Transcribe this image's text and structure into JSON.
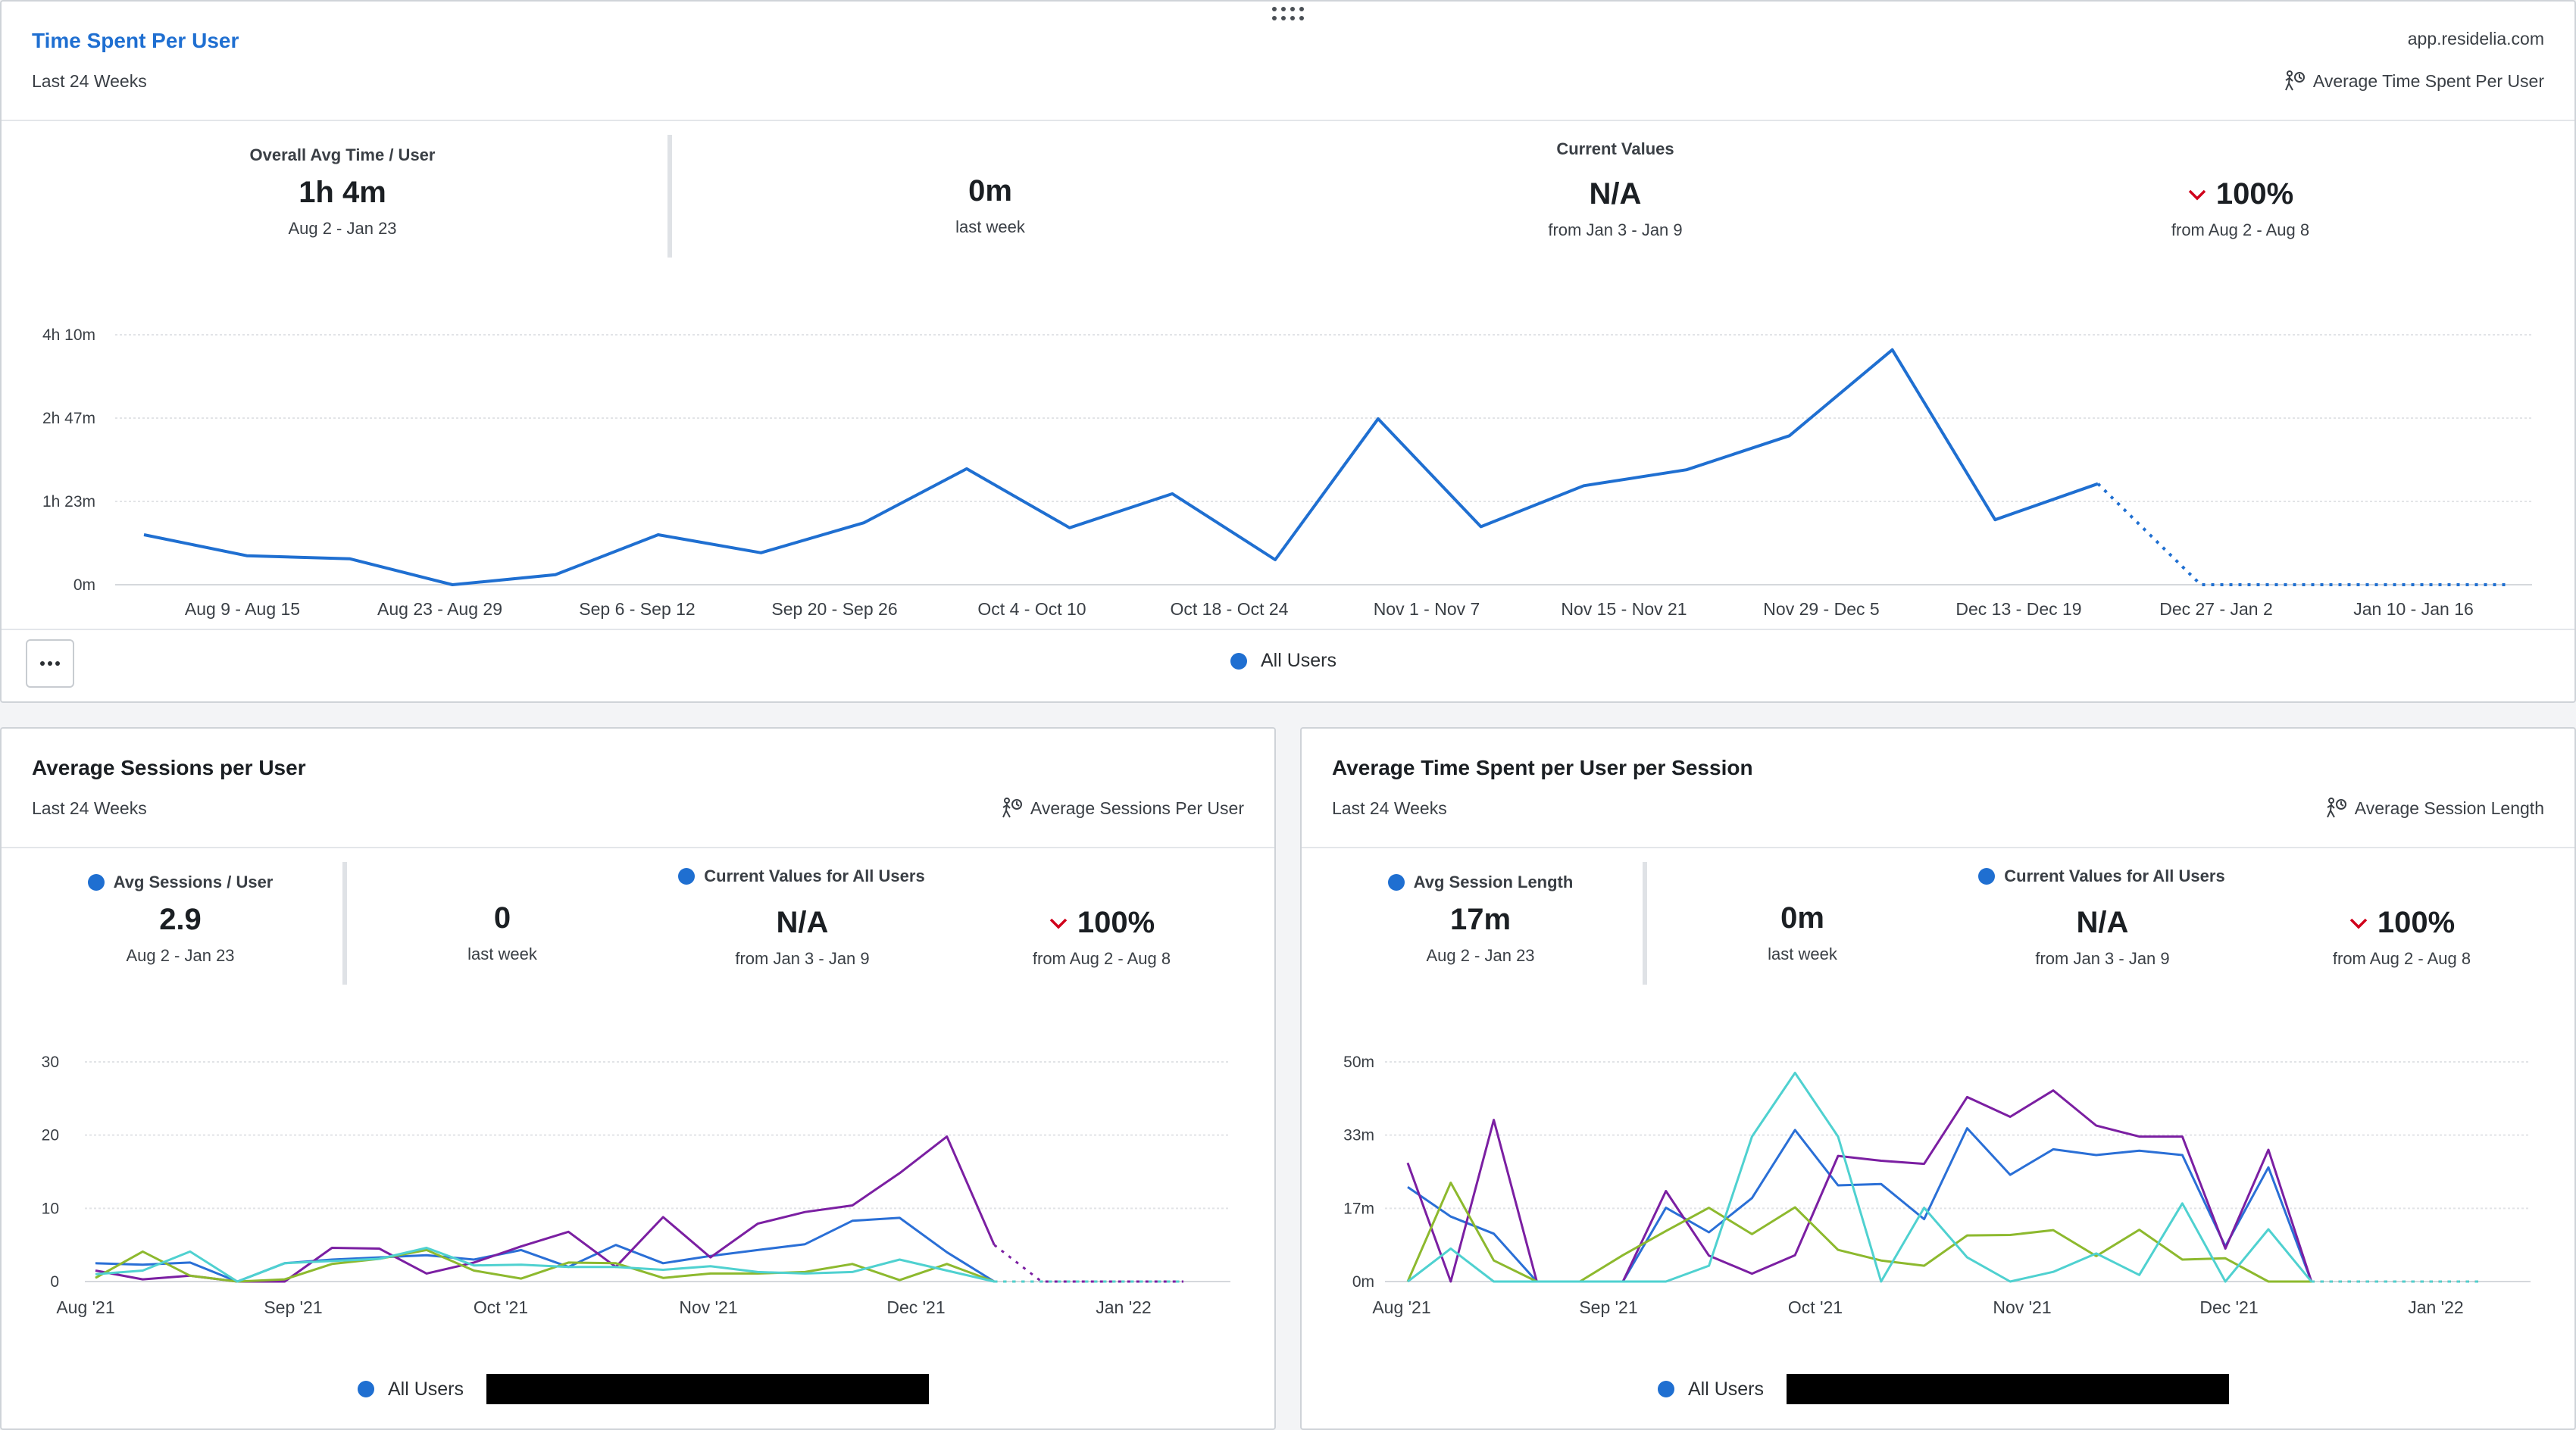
{
  "top_card": {
    "title": "Time Spent Per User",
    "subtitle": "Last 24 Weeks",
    "domain": "app.residelia.com",
    "metric_link": "Average Time Spent Per User",
    "metric_link_icon": "walking-person-clock-icon",
    "overall": {
      "label": "Overall Avg Time / User",
      "value": "1h 4m",
      "range": "Aug 2 - Jan 23"
    },
    "current_values_label": "Current Values",
    "last_week": {
      "value": "0m",
      "label": "last week"
    },
    "current": {
      "value": "N/A",
      "label": "from Jan 3 - Jan 9"
    },
    "change": {
      "value": "100%",
      "label": "from Aug 2 - Aug 8",
      "direction": "down",
      "color": "#d0021b"
    },
    "legend": "All Users",
    "more_icon": "more-horizontal-icon"
  },
  "sessions_card": {
    "title": "Average Sessions per User",
    "subtitle": "Last 24 Weeks",
    "metric_link": "Average Sessions Per User",
    "overall": {
      "label": "Avg Sessions / User",
      "value": "2.9",
      "range": "Aug 2 - Jan 23"
    },
    "current_values_label": "Current Values for All Users",
    "last_week": {
      "value": "0",
      "label": "last week"
    },
    "current": {
      "value": "N/A",
      "label": "from Jan 3 - Jan 9"
    },
    "change": {
      "value": "100%",
      "label": "from Aug 2 - Aug 8",
      "direction": "down"
    },
    "legend": "All Users"
  },
  "session_length_card": {
    "title": "Average Time Spent per User per Session",
    "subtitle": "Last 24 Weeks",
    "metric_link": "Average Session Length",
    "overall": {
      "label": "Avg Session Length",
      "value": "17m",
      "range": "Aug 2 - Jan 23"
    },
    "current_values_label": "Current Values for All Users",
    "last_week": {
      "value": "0m",
      "label": "last week"
    },
    "current": {
      "value": "N/A",
      "label": "from Jan 3 - Jan 9"
    },
    "change": {
      "value": "100%",
      "label": "from Aug 2 - Aug 8",
      "direction": "down"
    },
    "legend": "All Users"
  },
  "chart_data": [
    {
      "type": "line",
      "y_ticks": [
        "0m",
        "1h 23m",
        "2h 47m",
        "4h 10m"
      ],
      "ylim": [
        0,
        250
      ],
      "x_labels": [
        "Aug 9 - Aug 15",
        "Aug 23 - Aug 29",
        "Sep 6 - Sep 12",
        "Sep 20 - Sep 26",
        "Oct 4 - Oct 10",
        "Oct 18 - Oct 24",
        "Nov 1 - Nov 7",
        "Nov 15 - Nov 21",
        "Nov 29 - Dec 5",
        "Dec 13 - Dec 19",
        "Dec 27 - Jan 2",
        "Jan 10 - Jan 16"
      ],
      "grid": true,
      "series": [
        {
          "name": "All Users",
          "color": "#1f6fd1",
          "values": [
            50,
            29,
            26,
            0,
            10,
            50,
            32,
            62,
            116,
            57,
            91,
            25,
            166,
            58,
            99,
            115,
            149,
            235,
            65,
            101,
            0,
            0,
            0,
            0
          ],
          "projected_points": 4
        }
      ]
    },
    {
      "type": "line",
      "y_ticks": [
        "0",
        "10",
        "20",
        "30"
      ],
      "ylim": [
        0,
        30
      ],
      "x_labels": [
        "Aug '21",
        "Sep '21",
        "Oct '21",
        "Nov '21",
        "Dec '21",
        "Jan '22"
      ],
      "grid": true,
      "series": [
        {
          "color": "#2a6fd6",
          "values": [
            2.5,
            2.3,
            2.6,
            0,
            2.5,
            3.0,
            3.3,
            3.6,
            3.0,
            4.3,
            2.0,
            5.0,
            2.5,
            3.5,
            4.3,
            5.1,
            8.3,
            8.7,
            4.0,
            0,
            0,
            0,
            0,
            0
          ]
        },
        {
          "color": "#7b1fa2",
          "values": [
            1.5,
            0.3,
            0.8,
            0,
            0,
            4.6,
            4.5,
            1.1,
            2.6,
            4.8,
            6.8,
            2.0,
            8.8,
            3.3,
            7.9,
            9.5,
            10.4,
            14.8,
            19.8,
            5.0,
            0,
            0,
            0,
            0
          ]
        },
        {
          "color": "#8db92e",
          "values": [
            0.5,
            4.1,
            0.8,
            0,
            0.3,
            2.4,
            3.1,
            4.3,
            1.5,
            0.4,
            2.6,
            2.5,
            0.5,
            1.1,
            1.1,
            1.3,
            2.4,
            0.2,
            2.4,
            0,
            0,
            0,
            0,
            0
          ]
        },
        {
          "color": "#4fd1d0",
          "values": [
            1.0,
            1.5,
            4.1,
            0,
            2.5,
            2.8,
            3.1,
            4.6,
            2.2,
            2.3,
            2.0,
            2.0,
            1.6,
            2.1,
            1.3,
            1.1,
            1.3,
            3.0,
            1.5,
            0,
            0,
            0,
            0,
            0
          ]
        }
      ],
      "projected_points": 4
    },
    {
      "type": "line",
      "y_ticks": [
        "0m",
        "17m",
        "33m",
        "50m"
      ],
      "ylim": [
        0,
        50
      ],
      "x_labels": [
        "Aug '21",
        "Sep '21",
        "Oct '21",
        "Nov '21",
        "Dec '21",
        "Jan '22"
      ],
      "grid": true,
      "series": [
        {
          "color": "#2a6fd6",
          "values": [
            21.5,
            14.8,
            10.9,
            0,
            0,
            0,
            16.8,
            11.2,
            19.0,
            34.5,
            21.9,
            22.2,
            14.2,
            34.9,
            24.3,
            30.1,
            28.8,
            29.8,
            28.8,
            8.0,
            26.0,
            0,
            0,
            0,
            0,
            0
          ]
        },
        {
          "color": "#7b1fa2",
          "values": [
            27.0,
            0,
            36.8,
            0,
            0,
            0,
            20.6,
            5.9,
            1.8,
            6.0,
            28.6,
            27.5,
            26.8,
            42.0,
            37.5,
            43.5,
            35.5,
            33.0,
            33.0,
            7.5,
            30.0,
            0,
            0,
            0,
            0,
            0
          ]
        },
        {
          "color": "#8db92e",
          "values": [
            0,
            22.5,
            4.8,
            0,
            0,
            6.0,
            11.5,
            16.8,
            10.8,
            16.9,
            7.2,
            4.8,
            3.6,
            10.5,
            10.6,
            11.7,
            5.8,
            11.8,
            5.0,
            5.3,
            0,
            0,
            0,
            0,
            0,
            0
          ]
        },
        {
          "color": "#4fd1d0",
          "values": [
            0,
            7.5,
            0,
            0,
            0,
            0,
            0,
            3.6,
            33.0,
            47.5,
            33.0,
            0,
            16.8,
            5.5,
            0,
            2.2,
            6.4,
            1.5,
            17.8,
            0,
            11.9,
            0,
            0,
            0,
            0,
            0
          ]
        }
      ],
      "projected_points": 4
    }
  ]
}
